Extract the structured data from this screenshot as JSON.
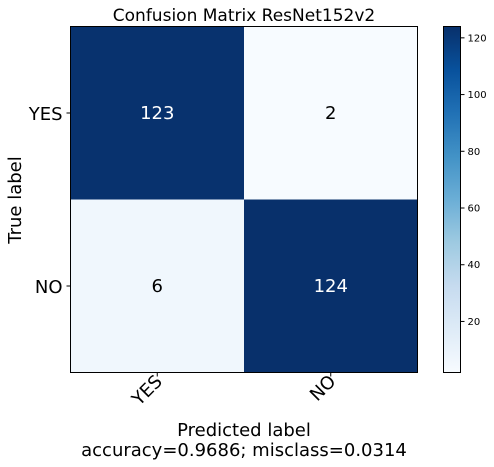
{
  "chart_data": {
    "type": "heatmap",
    "title": "Confusion Matrix ResNet152v2",
    "xlabel": "Predicted label",
    "ylabel": "True label",
    "subtitle": "accuracy=0.9686; misclass=0.0314",
    "x_categories": [
      "YES",
      "NO"
    ],
    "y_categories": [
      "YES",
      "NO"
    ],
    "matrix": [
      [
        123,
        2
      ],
      [
        6,
        124
      ]
    ],
    "colormap": "Blues",
    "color_range": [
      2,
      124
    ],
    "colorbar_ticks": [
      20,
      40,
      60,
      80,
      100,
      120
    ],
    "colorbar_tick_labels": [
      "20",
      "40",
      "60",
      "80",
      "100",
      "120"
    ],
    "text_color_dark": "#ffffff",
    "text_color_light": "#000000"
  }
}
